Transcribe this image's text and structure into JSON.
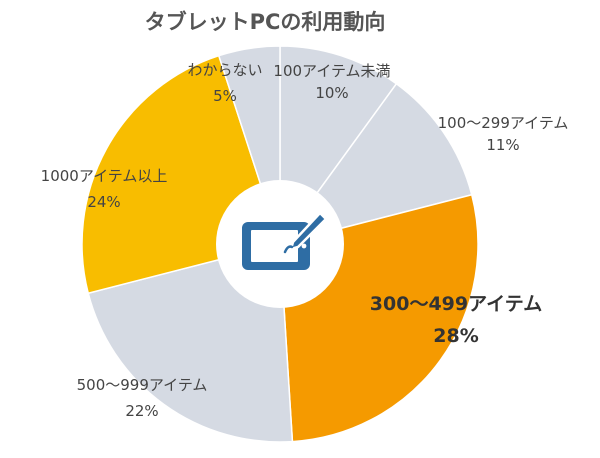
{
  "chart_data": {
    "type": "pie",
    "title": "タブレットPCの利用動向",
    "slices": [
      {
        "label": "100アイテム未満",
        "value": 10,
        "value_text": "10%",
        "color": "#d5dae3",
        "highlight": false
      },
      {
        "label": "100〜299アイテム",
        "value": 11,
        "value_text": "11%",
        "color": "#d5dae3",
        "highlight": false
      },
      {
        "label": "300〜499アイテム",
        "value": 28,
        "value_text": "28%",
        "color": "#f59a00",
        "highlight": true
      },
      {
        "label": "500〜999アイテム",
        "value": 22,
        "value_text": "22%",
        "color": "#d5dae3",
        "highlight": false
      },
      {
        "label": "1000アイテム以上",
        "value": 24,
        "value_text": "24%",
        "color": "#f8bd00",
        "highlight": false
      },
      {
        "label": "わからない",
        "value": 5,
        "value_text": "5%",
        "color": "#d5dae3",
        "highlight": false
      }
    ],
    "start": "12 o'clock",
    "direction": "clockwise",
    "legend": "none"
  },
  "center_icon": {
    "name": "tablet-pen-icon",
    "color": "#2e6da4"
  }
}
